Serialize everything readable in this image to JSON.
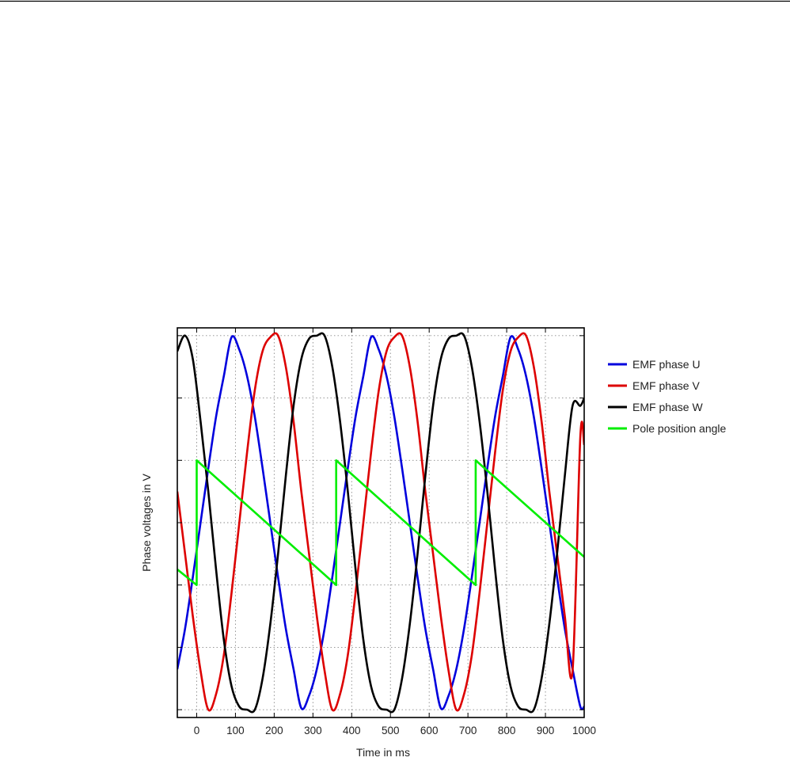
{
  "chart_data": {
    "type": "line",
    "title": "",
    "xlabel": "Time in ms",
    "ylabel": "Phase voltages in V",
    "xlim": [
      -50,
      1000
    ],
    "ylim": [
      -1.25,
      1.25
    ],
    "x_ticks": [
      0,
      100,
      200,
      300,
      400,
      500,
      600,
      700,
      800,
      900,
      1000
    ],
    "x_tick_labels": [
      "0",
      "100",
      "200",
      "300",
      "400",
      "500",
      "600",
      "700",
      "800",
      "900",
      "1000"
    ],
    "y_ticks": [
      -1.2,
      -0.8,
      -0.4,
      0,
      0.4,
      0.8,
      1.2
    ],
    "y_tick_labels": [
      "",
      "",
      "",
      "",
      "",
      "",
      ""
    ],
    "grid": true,
    "legend": "right",
    "series": [
      {
        "name": "EMF phase U",
        "color": "#0000dd",
        "x": [
          -50,
          -30,
          -10,
          10,
          30,
          50,
          70,
          90,
          110,
          130,
          150,
          170,
          190,
          210,
          230,
          250,
          270,
          290,
          310,
          330,
          350,
          370,
          390,
          410,
          430,
          450,
          470,
          490,
          510,
          530,
          550,
          570,
          590,
          610,
          630,
          650,
          670,
          690,
          710,
          730,
          750,
          770,
          790,
          810,
          830,
          850,
          870,
          890,
          910,
          930,
          950,
          970,
          990,
          1000
        ],
        "y": [
          -0.94,
          -0.68,
          -0.35,
          0.0,
          0.35,
          0.68,
          0.94,
          1.19,
          1.11,
          0.94,
          0.68,
          0.35,
          0.0,
          -0.35,
          -0.68,
          -0.94,
          -1.19,
          -1.11,
          -0.94,
          -0.68,
          -0.35,
          0.0,
          0.35,
          0.68,
          0.94,
          1.19,
          1.11,
          0.94,
          0.68,
          0.35,
          0.0,
          -0.35,
          -0.68,
          -0.94,
          -1.19,
          -1.11,
          -0.94,
          -0.68,
          -0.35,
          0.0,
          0.35,
          0.68,
          0.94,
          1.19,
          1.11,
          0.94,
          0.68,
          0.35,
          0.0,
          -0.35,
          -0.68,
          -0.94,
          -1.18,
          -1.18
        ]
      },
      {
        "name": "EMF phase V",
        "color": "#dd0000",
        "x": [
          -50,
          -30,
          -10,
          10,
          30,
          50,
          70,
          90,
          110,
          130,
          150,
          170,
          190,
          210,
          230,
          250,
          270,
          290,
          310,
          330,
          350,
          370,
          390,
          410,
          430,
          450,
          470,
          490,
          510,
          530,
          550,
          570,
          590,
          610,
          630,
          650,
          670,
          690,
          710,
          730,
          750,
          770,
          790,
          810,
          830,
          850,
          870,
          890,
          910,
          930,
          950,
          970,
          990,
          1000
        ],
        "y": [
          0.2,
          -0.2,
          -0.6,
          -0.95,
          -1.2,
          -1.1,
          -0.85,
          -0.45,
          0.0,
          0.45,
          0.85,
          1.1,
          1.19,
          1.2,
          1.0,
          0.65,
          0.2,
          -0.2,
          -0.6,
          -0.95,
          -1.2,
          -1.1,
          -0.85,
          -0.45,
          0.0,
          0.45,
          0.85,
          1.1,
          1.19,
          1.2,
          1.0,
          0.65,
          0.2,
          -0.2,
          -0.6,
          -0.95,
          -1.2,
          -1.1,
          -0.85,
          -0.45,
          0.0,
          0.45,
          0.85,
          1.1,
          1.19,
          1.2,
          1.0,
          0.65,
          0.2,
          -0.2,
          -0.6,
          -0.95,
          0.55,
          0.5
        ]
      },
      {
        "name": "EMF phase W",
        "color": "#000000",
        "x": [
          -50,
          -30,
          -10,
          10,
          30,
          50,
          70,
          90,
          110,
          130,
          150,
          170,
          190,
          210,
          230,
          250,
          270,
          290,
          310,
          330,
          350,
          370,
          390,
          410,
          430,
          450,
          470,
          490,
          510,
          530,
          550,
          570,
          590,
          610,
          630,
          650,
          670,
          690,
          710,
          730,
          750,
          770,
          790,
          810,
          830,
          850,
          870,
          890,
          910,
          930,
          950,
          970,
          990,
          1000
        ],
        "y": [
          1.1,
          1.2,
          1.05,
          0.65,
          0.2,
          -0.3,
          -0.75,
          -1.05,
          -1.18,
          -1.2,
          -1.2,
          -1.0,
          -0.65,
          -0.2,
          0.3,
          0.75,
          1.05,
          1.18,
          1.2,
          1.2,
          1.0,
          0.65,
          0.2,
          -0.3,
          -0.75,
          -1.05,
          -1.18,
          -1.2,
          -1.2,
          -1.0,
          -0.65,
          -0.2,
          0.3,
          0.75,
          1.05,
          1.18,
          1.2,
          1.2,
          1.0,
          0.65,
          0.2,
          -0.3,
          -0.75,
          -1.05,
          -1.18,
          -1.2,
          -1.2,
          -1.0,
          -0.65,
          -0.2,
          0.3,
          0.75,
          0.75,
          0.8
        ]
      },
      {
        "name": "Pole position angle",
        "color": "#00ee00",
        "x": [
          -50,
          0,
          0,
          360,
          360,
          720,
          720,
          1000
        ],
        "y": [
          -0.3,
          -0.4,
          0.4,
          -0.4,
          0.4,
          -0.4,
          0.4,
          -0.22
        ]
      }
    ]
  }
}
